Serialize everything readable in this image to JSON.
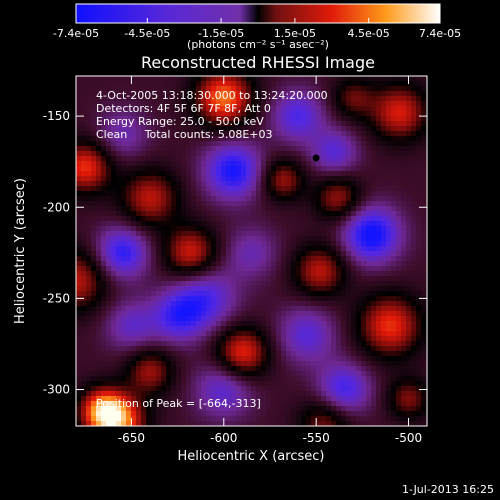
{
  "chart_data": {
    "type": "heatmap",
    "title": "Reconstructed RHESSI Image",
    "xlabel": "Heliocentric X (arcsec)",
    "ylabel": "Heliocentric Y (arcsec)",
    "xlim": [
      -680,
      -490
    ],
    "ylim": [
      -320,
      -128
    ],
    "xticks": [
      -650,
      -600,
      -550,
      -500
    ],
    "xtick_labels": [
      "-650",
      "-600",
      "-550",
      "-500"
    ],
    "yticks": [
      -150,
      -200,
      -250,
      -300
    ],
    "ytick_labels": [
      "-150",
      "-200",
      "-250",
      "-300"
    ],
    "colorbar": {
      "ticks": [
        -7.4e-05,
        -4.5e-05,
        -1.5e-05,
        1.5e-05,
        4.5e-05,
        7.4e-05
      ],
      "tick_labels": [
        "-7.4e-05",
        "-4.5e-05",
        "-1.5e-05",
        "1.5e-05",
        "4.5e-05",
        "7.4e-05"
      ],
      "unit_label": "(photons cm⁻² s⁻¹ asec⁻²)",
      "range": [
        -7.4e-05,
        7.4e-05
      ]
    },
    "info_lines": [
      "4-Oct-2005 13:18:30.000 to 13:24:20.000",
      "Detectors: 4F 5F 6F 7F 8F, Att 0",
      "Energy Range: 25.0 - 50.0 keV",
      "Clean     Total counts: 5.08E+03"
    ],
    "peak_label": "Position of Peak = [-664,-313]",
    "peak": {
      "x": -664,
      "y": -313
    },
    "marker": {
      "x": -550,
      "y": -173
    },
    "sources": [
      {
        "x": -665,
        "y": -312,
        "value": 7.4e-05,
        "w": 9
      },
      {
        "x": -600,
        "y": -140,
        "value": 6.5e-05,
        "w": 11
      },
      {
        "x": -505,
        "y": -148,
        "value": 5e-05,
        "w": 11
      },
      {
        "x": -530,
        "y": -140,
        "value": 3e-05,
        "w": 8
      },
      {
        "x": -675,
        "y": -178,
        "value": 5.5e-05,
        "w": 10
      },
      {
        "x": -640,
        "y": -195,
        "value": 4.5e-05,
        "w": 11
      },
      {
        "x": -568,
        "y": -185,
        "value": 4e-05,
        "w": 8
      },
      {
        "x": -538,
        "y": -195,
        "value": 4e-05,
        "w": 9
      },
      {
        "x": -680,
        "y": -240,
        "value": 4.5e-05,
        "w": 12
      },
      {
        "x": -618,
        "y": -225,
        "value": 5e-05,
        "w": 10
      },
      {
        "x": -548,
        "y": -235,
        "value": 4.5e-05,
        "w": 10
      },
      {
        "x": -510,
        "y": -265,
        "value": 5.5e-05,
        "w": 12
      },
      {
        "x": -590,
        "y": -280,
        "value": 5.5e-05,
        "w": 10
      },
      {
        "x": -640,
        "y": -290,
        "value": 4e-05,
        "w": 9
      },
      {
        "x": -655,
        "y": -318,
        "value": 5e-05,
        "w": 10
      },
      {
        "x": -545,
        "y": -318,
        "value": 3.5e-05,
        "w": 10
      },
      {
        "x": -500,
        "y": -305,
        "value": 3.5e-05,
        "w": 8
      },
      {
        "x": -655,
        "y": -160,
        "value": -2.5e-05,
        "w": 10
      },
      {
        "x": -560,
        "y": -150,
        "value": -4e-05,
        "w": 10
      },
      {
        "x": -595,
        "y": -180,
        "value": -5.5e-05,
        "w": 11
      },
      {
        "x": -540,
        "y": -170,
        "value": -3.5e-05,
        "w": 9
      },
      {
        "x": -520,
        "y": -215,
        "value": -6e-05,
        "w": 11
      },
      {
        "x": -655,
        "y": -225,
        "value": -5e-05,
        "w": 10
      },
      {
        "x": -610,
        "y": -250,
        "value": -4e-05,
        "w": 12
      },
      {
        "x": -625,
        "y": -260,
        "value": -4e-05,
        "w": 10
      },
      {
        "x": -555,
        "y": -270,
        "value": -3.5e-05,
        "w": 11
      },
      {
        "x": -535,
        "y": -300,
        "value": -4.5e-05,
        "w": 10
      },
      {
        "x": -600,
        "y": -300,
        "value": -3.5e-05,
        "w": 11
      },
      {
        "x": -650,
        "y": -265,
        "value": -3e-05,
        "w": 10
      },
      {
        "x": -585,
        "y": -225,
        "value": -2.5e-05,
        "w": 10
      }
    ]
  },
  "footer": {
    "timestamp": "1-Jul-2013 16:25"
  }
}
